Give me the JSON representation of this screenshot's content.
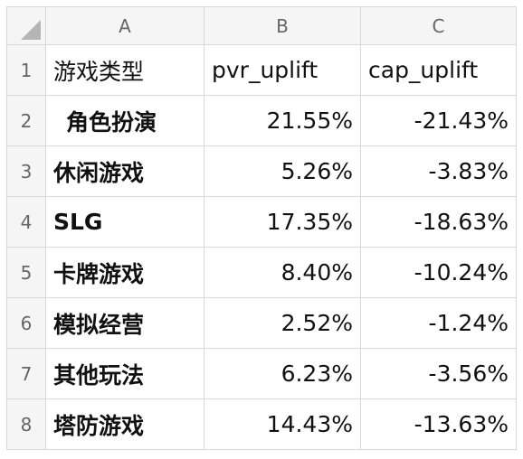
{
  "columns": [
    "A",
    "B",
    "C"
  ],
  "rows": [
    {
      "number": "1",
      "cells": [
        "游戏类型",
        "pvr_uplift",
        "cap_uplift"
      ]
    },
    {
      "number": "2",
      "cells": [
        "角色扮演",
        "21.55%",
        "-21.43%"
      ]
    },
    {
      "number": "3",
      "cells": [
        "休闲游戏",
        "5.26%",
        "-3.83%"
      ]
    },
    {
      "number": "4",
      "cells": [
        "SLG",
        "17.35%",
        "-18.63%"
      ]
    },
    {
      "number": "5",
      "cells": [
        "卡牌游戏",
        "8.40%",
        "-10.24%"
      ]
    },
    {
      "number": "6",
      "cells": [
        "模拟经营",
        "2.52%",
        "-1.24%"
      ]
    },
    {
      "number": "7",
      "cells": [
        "其他玩法",
        "6.23%",
        "-3.56%"
      ]
    },
    {
      "number": "8",
      "cells": [
        "塔防游戏",
        "14.43%",
        "-13.63%"
      ]
    }
  ]
}
